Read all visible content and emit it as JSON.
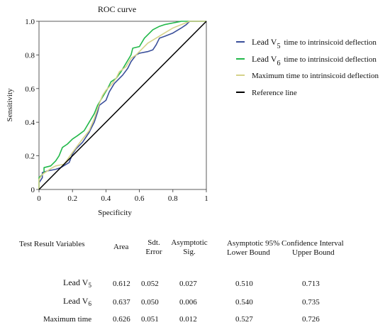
{
  "chart_data": {
    "type": "line",
    "title": "ROC curve",
    "xlabel": "Specificity",
    "ylabel": "Sensitivity",
    "xlim": [
      0,
      1
    ],
    "ylim": [
      0,
      1
    ],
    "x_ticks": [
      "0",
      "0.2",
      "0.4",
      "0.6",
      "0.8",
      "1"
    ],
    "y_ticks": [
      "0",
      "0.2",
      "0.4",
      "0.6",
      "0.8",
      "1.0"
    ],
    "grid": false,
    "legend_position": "right",
    "series": [
      {
        "name": "Lead V5 time to intrinsicoid deflection",
        "legend_main": "Lead  V",
        "legend_sub": "5",
        "legend_rest": "time to intrinsicoid deflection",
        "color": "#3a4f9a",
        "points": [
          [
            0,
            0
          ],
          [
            0,
            0.04
          ],
          [
            0.02,
            0.07
          ],
          [
            0.02,
            0.1
          ],
          [
            0.05,
            0.11
          ],
          [
            0.1,
            0.12
          ],
          [
            0.13,
            0.13
          ],
          [
            0.18,
            0.16
          ],
          [
            0.2,
            0.21
          ],
          [
            0.22,
            0.24
          ],
          [
            0.26,
            0.28
          ],
          [
            0.3,
            0.34
          ],
          [
            0.33,
            0.4
          ],
          [
            0.35,
            0.46
          ],
          [
            0.36,
            0.5
          ],
          [
            0.4,
            0.53
          ],
          [
            0.42,
            0.58
          ],
          [
            0.45,
            0.63
          ],
          [
            0.48,
            0.66
          ],
          [
            0.5,
            0.68
          ],
          [
            0.53,
            0.72
          ],
          [
            0.55,
            0.76
          ],
          [
            0.58,
            0.8
          ],
          [
            0.6,
            0.81
          ],
          [
            0.65,
            0.82
          ],
          [
            0.68,
            0.83
          ],
          [
            0.7,
            0.86
          ],
          [
            0.72,
            0.9
          ],
          [
            0.75,
            0.91
          ],
          [
            0.8,
            0.93
          ],
          [
            0.85,
            0.96
          ],
          [
            0.88,
            0.98
          ],
          [
            0.9,
            1
          ],
          [
            1,
            1
          ]
        ]
      },
      {
        "name": "Lead V6 time to intrinsicoid deflection",
        "legend_main": "Lead  V",
        "legend_sub": "6",
        "legend_rest": "time to intrinsicoid deflection",
        "color": "#22b84a",
        "points": [
          [
            0,
            0
          ],
          [
            0,
            0.07
          ],
          [
            0.03,
            0.1
          ],
          [
            0.03,
            0.13
          ],
          [
            0.07,
            0.14
          ],
          [
            0.1,
            0.17
          ],
          [
            0.12,
            0.2
          ],
          [
            0.14,
            0.25
          ],
          [
            0.17,
            0.27
          ],
          [
            0.2,
            0.3
          ],
          [
            0.23,
            0.32
          ],
          [
            0.27,
            0.35
          ],
          [
            0.3,
            0.4
          ],
          [
            0.33,
            0.45
          ],
          [
            0.35,
            0.5
          ],
          [
            0.38,
            0.55
          ],
          [
            0.41,
            0.6
          ],
          [
            0.43,
            0.64
          ],
          [
            0.46,
            0.66
          ],
          [
            0.49,
            0.7
          ],
          [
            0.52,
            0.75
          ],
          [
            0.55,
            0.8
          ],
          [
            0.56,
            0.84
          ],
          [
            0.6,
            0.85
          ],
          [
            0.63,
            0.9
          ],
          [
            0.68,
            0.95
          ],
          [
            0.72,
            0.97
          ],
          [
            0.75,
            0.98
          ],
          [
            0.8,
            0.99
          ],
          [
            0.85,
            1
          ],
          [
            1,
            1
          ]
        ]
      },
      {
        "name": "Maximum time to intrinsicoid deflection",
        "legend_main": "Maximum time to intrinsicoid deflection",
        "legend_sub": "",
        "legend_rest": "",
        "color": "#d6d28a",
        "points": [
          [
            0,
            0
          ],
          [
            0,
            0.06
          ],
          [
            0.02,
            0.09
          ],
          [
            0.05,
            0.11
          ],
          [
            0.08,
            0.13
          ],
          [
            0.1,
            0.14
          ],
          [
            0.15,
            0.15
          ],
          [
            0.2,
            0.22
          ],
          [
            0.23,
            0.26
          ],
          [
            0.26,
            0.3
          ],
          [
            0.3,
            0.35
          ],
          [
            0.33,
            0.42
          ],
          [
            0.36,
            0.51
          ],
          [
            0.38,
            0.56
          ],
          [
            0.4,
            0.59
          ],
          [
            0.43,
            0.62
          ],
          [
            0.46,
            0.66
          ],
          [
            0.48,
            0.7
          ],
          [
            0.52,
            0.73
          ],
          [
            0.55,
            0.78
          ],
          [
            0.58,
            0.8
          ],
          [
            0.62,
            0.84
          ],
          [
            0.65,
            0.87
          ],
          [
            0.7,
            0.9
          ],
          [
            0.75,
            0.93
          ],
          [
            0.8,
            0.96
          ],
          [
            0.85,
            0.98
          ],
          [
            0.9,
            1
          ],
          [
            1,
            1
          ]
        ]
      },
      {
        "name": "Reference line",
        "legend_main": "Reference line",
        "legend_sub": "",
        "legend_rest": "",
        "color": "#000000",
        "points": [
          [
            0,
            0
          ],
          [
            1,
            1
          ]
        ]
      }
    ]
  },
  "table": {
    "headers": {
      "variables": "Test Result Variables",
      "area": "Area",
      "se_1": "Sdt.",
      "se_2": "Error",
      "sig_1": "Asymptotic",
      "sig_2": "Sig.",
      "ci_title": "Asymptotic 95% Confidence Interval",
      "lower": "Lower Bound",
      "upper": "Upper Bound"
    },
    "rows": [
      {
        "label_main": "Lead  V",
        "label_sub": "5",
        "area": "0.612",
        "se": "0.052",
        "sig": "0.027",
        "lower": "0.510",
        "upper": "0.713"
      },
      {
        "label_main": "Lead  V",
        "label_sub": "6",
        "area": "0.637",
        "se": "0.050",
        "sig": "0.006",
        "lower": "0.540",
        "upper": "0.735"
      },
      {
        "label_main": "Maximum time",
        "label_sub": "",
        "area": "0.626",
        "se": "0.051",
        "sig": "0.012",
        "lower": "0.527",
        "upper": "0.726"
      }
    ]
  }
}
